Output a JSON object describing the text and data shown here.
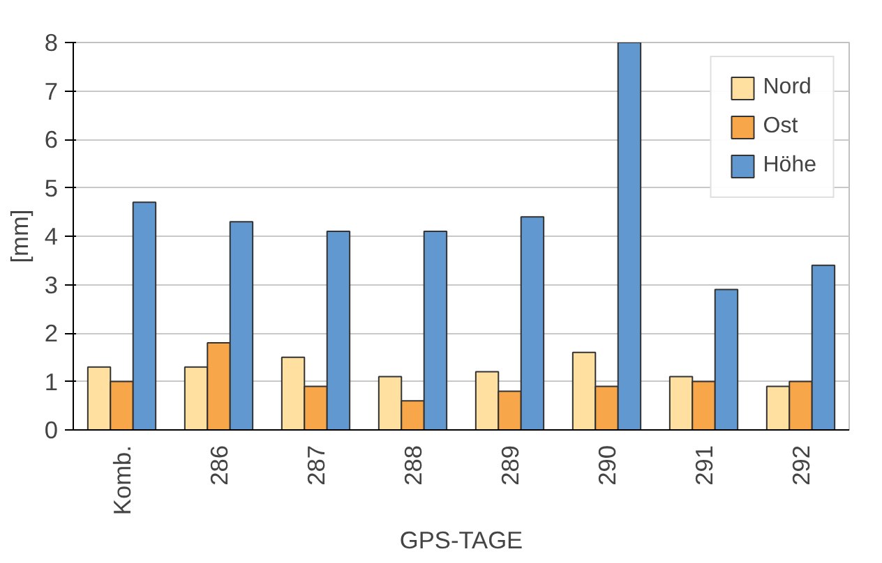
{
  "chart_data": {
    "type": "bar",
    "xlabel": "GPS-TAGE",
    "ylabel": "[mm]",
    "categories": [
      "Komb.",
      "286",
      "287",
      "288",
      "289",
      "290",
      "291",
      "292"
    ],
    "series": [
      {
        "name": "Nord",
        "color": "#ffe0a0",
        "values": [
          1.3,
          1.3,
          1.5,
          1.1,
          1.2,
          1.6,
          1.1,
          0.9
        ]
      },
      {
        "name": "Ost",
        "color": "#f8a64a",
        "values": [
          1.0,
          1.8,
          0.9,
          0.6,
          0.8,
          0.9,
          1.0,
          1.0
        ]
      },
      {
        "name": "Höhe",
        "color": "#6298d0",
        "values": [
          4.7,
          4.3,
          4.1,
          4.1,
          4.4,
          8.0,
          2.9,
          3.4
        ]
      }
    ],
    "ylim": [
      0,
      8
    ],
    "yticks": [
      0,
      1,
      2,
      3,
      4,
      5,
      6,
      7,
      8
    ],
    "grid": "y",
    "legend": "top right"
  }
}
